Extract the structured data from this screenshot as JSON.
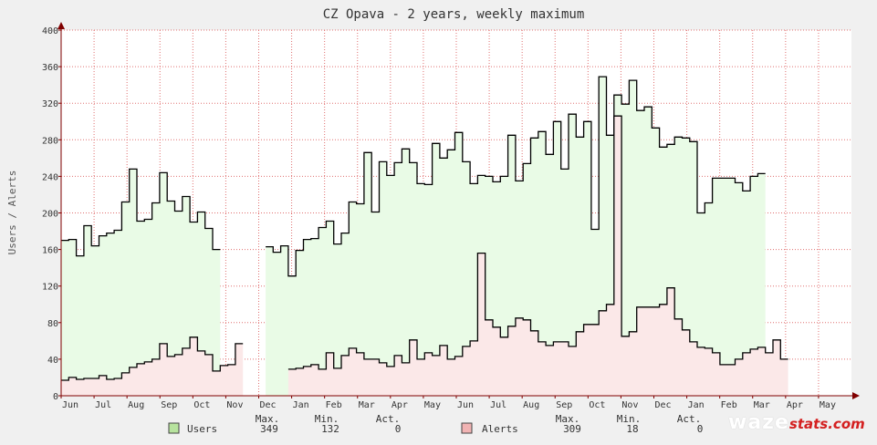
{
  "colors": {
    "background": "#f0f0f0",
    "plot_bg": "#ffffff",
    "grid": "#e07070",
    "users_fill": "#e9fbe6",
    "users_line": "#000000",
    "alerts_fill": "#fbe8e8",
    "alerts_line": "#000000",
    "axis": "#800000",
    "users_legend": "#b7e39e",
    "alerts_legend": "#f1b3b3"
  },
  "chart_data": {
    "type": "area",
    "title": "CZ Opava - 2 years, weekly maximum",
    "ylabel": "Users / Alerts",
    "xlabel": "",
    "ylim": [
      0,
      400
    ],
    "y_ticks": [
      0,
      40,
      80,
      120,
      160,
      200,
      240,
      280,
      320,
      360,
      400
    ],
    "x_month_labels": [
      "Jun",
      "Jul",
      "Aug",
      "Sep",
      "Oct",
      "Nov",
      "Dec",
      "Jan",
      "Feb",
      "Mar",
      "Apr",
      "May",
      "Jun",
      "Jul",
      "Aug",
      "Sep",
      "Oct",
      "Nov",
      "Dec",
      "Jan",
      "Feb",
      "Mar",
      "Apr",
      "May"
    ],
    "x_unit": "weeks since start",
    "grid": true,
    "series": [
      {
        "name": "Users",
        "values": [
          170,
          171,
          153,
          186,
          164,
          175,
          178,
          181,
          212,
          248,
          191,
          193,
          211,
          244,
          213,
          202,
          218,
          190,
          201,
          183,
          160,
          null,
          null,
          null,
          null,
          null,
          null,
          163,
          157,
          164,
          131,
          159,
          171,
          172,
          184,
          191,
          166,
          178,
          212,
          210,
          266,
          201,
          256,
          241,
          255,
          270,
          255,
          232,
          231,
          276,
          260,
          269,
          288,
          256,
          232,
          241,
          240,
          234,
          240,
          285,
          235,
          254,
          282,
          289,
          264,
          300,
          248,
          308,
          283,
          300,
          182,
          349,
          285,
          329,
          319,
          345,
          312,
          316,
          293,
          272,
          275,
          283,
          282,
          278,
          200,
          211,
          238,
          238,
          238,
          233,
          224,
          240,
          243
        ],
        "max": "349",
        "min": "132",
        "act": "0"
      },
      {
        "name": "Alerts",
        "values": [
          17,
          20,
          18,
          19,
          19,
          22,
          18,
          19,
          25,
          31,
          35,
          37,
          40,
          57,
          43,
          45,
          52,
          64,
          49,
          45,
          27,
          33,
          34,
          57,
          null,
          null,
          null,
          null,
          null,
          null,
          29,
          30,
          32,
          34,
          29,
          47,
          30,
          44,
          52,
          47,
          40,
          40,
          36,
          32,
          44,
          36,
          61,
          40,
          47,
          44,
          55,
          40,
          43,
          54,
          60,
          156,
          83,
          75,
          64,
          76,
          85,
          83,
          71,
          59,
          55,
          59,
          59,
          54,
          70,
          78,
          78,
          93,
          100,
          306,
          65,
          70,
          97,
          97,
          97,
          100,
          118,
          84,
          72,
          59,
          53,
          52,
          47,
          34,
          34,
          40,
          47,
          51,
          53,
          47,
          61,
          40
        ],
        "max": "309",
        "min": "18",
        "act": "0"
      }
    ]
  },
  "legend": {
    "headers": {
      "max": "Max.",
      "min": "Min.",
      "act": "Act."
    },
    "users": {
      "label": "Users",
      "max": "349",
      "min": "132",
      "act": "0"
    },
    "alerts": {
      "label": "Alerts",
      "max": "309",
      "min": "18",
      "act": "0"
    }
  },
  "logo": {
    "main": "waze",
    "sub": "stats.com"
  }
}
